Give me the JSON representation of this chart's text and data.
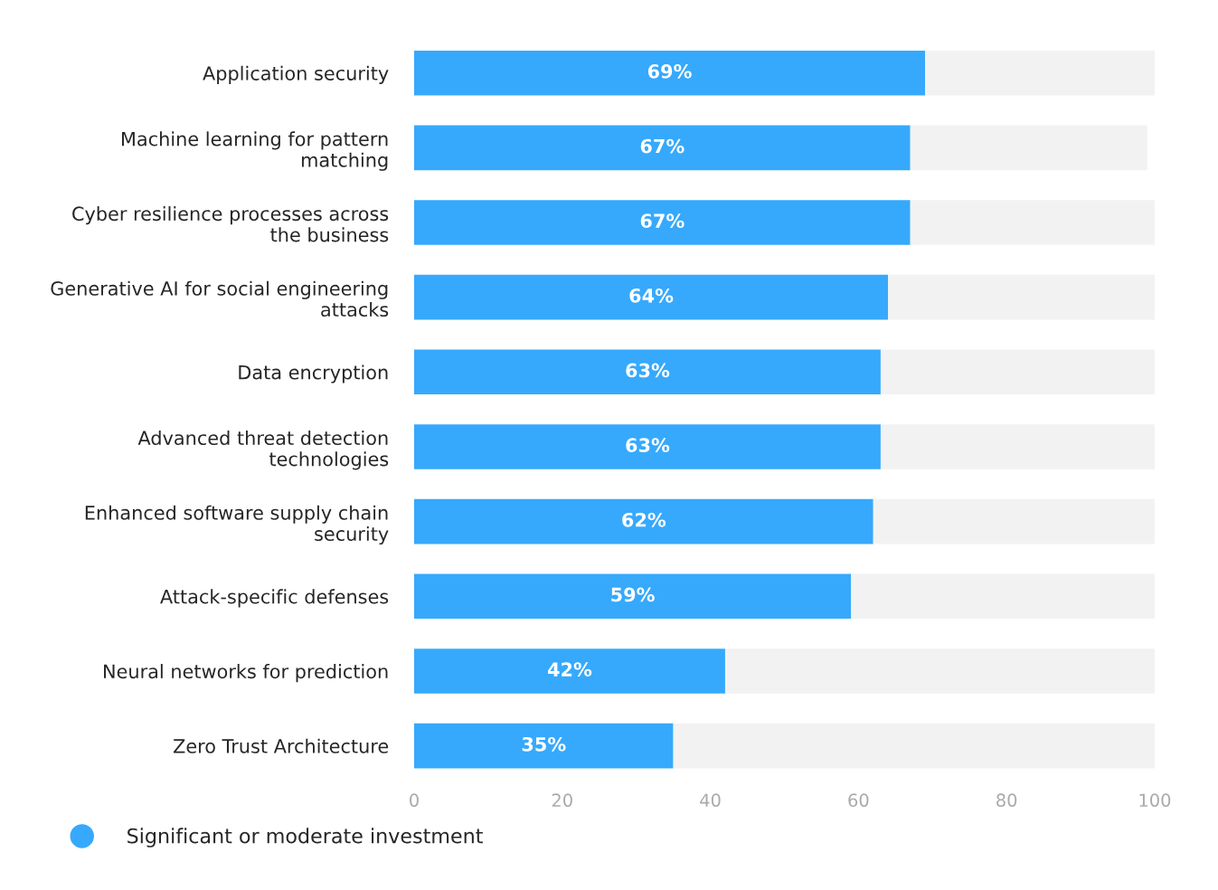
{
  "chart_data": {
    "type": "bar",
    "orientation": "horizontal",
    "stacked": true,
    "categories": [
      "Application security",
      "Machine learning for pattern\nmatching",
      "Cyber resilience processes across\nthe business",
      "Generative AI for social engineering\nattacks",
      "Data encryption",
      "Advanced threat detection\ntechnologies",
      "Enhanced software supply chain\nsecurity",
      "Attack-specific defenses",
      "Neural networks for prediction",
      "Zero Trust Architecture"
    ],
    "series": [
      {
        "name": "Significant or moderate investment",
        "color": "#36a9fc",
        "values": [
          69,
          67,
          67,
          64,
          63,
          63,
          62,
          59,
          42,
          35
        ],
        "value_labels": [
          "69%",
          "67%",
          "67%",
          "64%",
          "63%",
          "63%",
          "62%",
          "59%",
          "42%",
          "35%"
        ]
      },
      {
        "color": "#f2f2f2",
        "values": [
          31,
          32,
          33,
          36,
          37,
          37,
          38,
          41,
          58,
          65
        ]
      }
    ],
    "xlim": [
      0,
      100
    ],
    "xticks": [
      0,
      20,
      40,
      60,
      80,
      100
    ],
    "grid": false,
    "legend": "bottom left"
  }
}
